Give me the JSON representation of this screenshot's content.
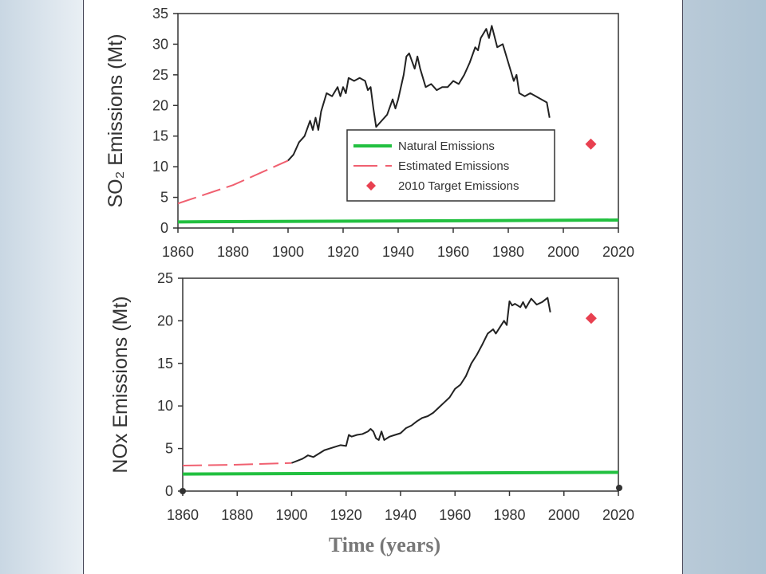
{
  "chart_data": [
    {
      "type": "line",
      "ylabel": "SO₂ Emissions (Mt)",
      "xlim": [
        1860,
        2020
      ],
      "ylim": [
        0,
        35
      ],
      "xticks": [
        1860,
        1880,
        1900,
        1920,
        1940,
        1960,
        1980,
        2000,
        2020
      ],
      "yticks": [
        0,
        5,
        10,
        15,
        20,
        25,
        30,
        35
      ],
      "legend": "center-right",
      "grid": false,
      "series": [
        {
          "name": "Natural Emissions",
          "color": "#22c040",
          "linestyle": "solid",
          "x": [
            1860,
            2020
          ],
          "values": [
            1,
            1.3
          ]
        },
        {
          "name": "Estimated Emissions",
          "color": "#f06070",
          "linestyle": "dashed",
          "x": [
            1860,
            1870,
            1880,
            1890,
            1900
          ],
          "values": [
            4,
            5.5,
            7,
            9,
            11
          ]
        },
        {
          "name": "2010 Target Emissions",
          "color": "#e84050",
          "linestyle": "none",
          "marker": "diamond",
          "x": [
            2010
          ],
          "values": [
            13.7
          ]
        },
        {
          "color": "#222",
          "linestyle": "solid",
          "x": [
            1900,
            1902,
            1904,
            1906,
            1908,
            1909,
            1910,
            1911,
            1912,
            1914,
            1916,
            1918,
            1919,
            1920,
            1921,
            1922,
            1924,
            1926,
            1928,
            1929,
            1930,
            1931,
            1932,
            1934,
            1936,
            1938,
            1939,
            1940,
            1942,
            1943,
            1944,
            1946,
            1947,
            1948,
            1950,
            1952,
            1954,
            1956,
            1958,
            1960,
            1962,
            1964,
            1966,
            1968,
            1969,
            1970,
            1972,
            1973,
            1974,
            1976,
            1978,
            1980,
            1982,
            1983,
            1984,
            1986,
            1988,
            1990,
            1992,
            1994,
            1995
          ],
          "values": [
            11,
            12,
            14,
            15,
            17.5,
            16,
            18,
            16,
            19,
            22,
            21.5,
            23,
            21.5,
            23,
            22,
            24.5,
            24,
            24.5,
            24,
            22.5,
            23,
            19.5,
            16.5,
            17.5,
            18.5,
            21,
            19.5,
            21,
            25,
            28,
            28.5,
            26,
            28,
            26,
            23,
            23.5,
            22.5,
            23,
            23,
            24,
            23.5,
            25,
            27,
            29.5,
            29,
            31,
            32.5,
            31,
            33,
            29.5,
            30,
            27,
            24,
            25,
            22,
            21.5,
            22,
            21.5,
            21,
            20.5,
            18
          ]
        }
      ]
    },
    {
      "type": "line",
      "ylabel": "NOx Emissions (Mt)",
      "x_label": "Time (years)",
      "xlim": [
        1860,
        2020
      ],
      "ylim": [
        0,
        25
      ],
      "xticks": [
        1860,
        1880,
        1900,
        1920,
        1940,
        1960,
        1980,
        2000,
        2020
      ],
      "yticks": [
        0,
        5,
        10,
        15,
        20,
        25
      ],
      "grid": false,
      "series": [
        {
          "color": "#22c040",
          "linestyle": "solid",
          "x": [
            1860,
            2020
          ],
          "values": [
            2,
            2.2
          ]
        },
        {
          "color": "#f06070",
          "linestyle": "dashed",
          "x": [
            1860,
            1880,
            1900
          ],
          "values": [
            3,
            3.1,
            3.3
          ]
        },
        {
          "color": "#e84050",
          "linestyle": "none",
          "marker": "diamond",
          "x": [
            2010
          ],
          "values": [
            20.3
          ]
        },
        {
          "color": "#222",
          "linestyle": "solid",
          "x": [
            1900,
            1904,
            1906,
            1908,
            1910,
            1912,
            1914,
            1916,
            1918,
            1920,
            1921,
            1922,
            1924,
            1926,
            1928,
            1929,
            1930,
            1931,
            1932,
            1933,
            1934,
            1936,
            1938,
            1940,
            1942,
            1944,
            1946,
            1948,
            1950,
            1952,
            1954,
            1956,
            1958,
            1960,
            1962,
            1964,
            1966,
            1968,
            1970,
            1972,
            1974,
            1975,
            1976,
            1978,
            1979,
            1980,
            1981,
            1982,
            1984,
            1985,
            1986,
            1988,
            1990,
            1992,
            1994,
            1995
          ],
          "values": [
            3.3,
            3.8,
            4.2,
            4,
            4.4,
            4.8,
            5,
            5.2,
            5.4,
            5.3,
            6.6,
            6.4,
            6.6,
            6.7,
            7,
            7.3,
            7,
            6.2,
            6,
            7,
            6,
            6.4,
            6.6,
            6.8,
            7.4,
            7.7,
            8.2,
            8.6,
            8.8,
            9.2,
            9.8,
            10.4,
            11,
            12,
            12.5,
            13.5,
            15,
            16,
            17.2,
            18.5,
            19,
            18.5,
            19,
            20,
            19.5,
            22.3,
            21.8,
            22,
            21.6,
            22.2,
            21.5,
            22.6,
            21.9,
            22.2,
            22.7,
            21
          ]
        }
      ]
    }
  ]
}
